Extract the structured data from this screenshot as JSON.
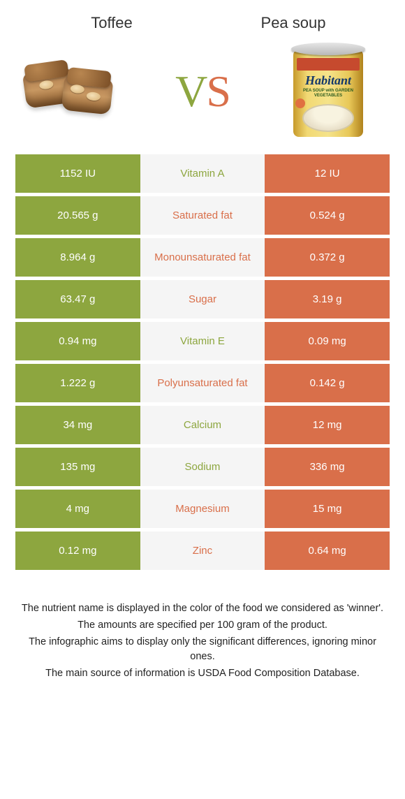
{
  "colors": {
    "left": "#8da63f",
    "right": "#d96f4a",
    "mid_bg": "#f5f5f5"
  },
  "header": {
    "left_title": "Toffee",
    "right_title": "Pea soup",
    "vs_v": "V",
    "vs_s": "S"
  },
  "can": {
    "brand": "Habitant",
    "sub": "PEA SOUP with GARDEN VEGETABLES"
  },
  "rows": [
    {
      "left": "1152 IU",
      "mid": "Vitamin A",
      "right": "12 IU",
      "winner": "left"
    },
    {
      "left": "20.565 g",
      "mid": "Saturated fat",
      "right": "0.524 g",
      "winner": "right"
    },
    {
      "left": "8.964 g",
      "mid": "Monounsaturated fat",
      "right": "0.372 g",
      "winner": "right"
    },
    {
      "left": "63.47 g",
      "mid": "Sugar",
      "right": "3.19 g",
      "winner": "right"
    },
    {
      "left": "0.94 mg",
      "mid": "Vitamin E",
      "right": "0.09 mg",
      "winner": "left"
    },
    {
      "left": "1.222 g",
      "mid": "Polyunsaturated fat",
      "right": "0.142 g",
      "winner": "right"
    },
    {
      "left": "34 mg",
      "mid": "Calcium",
      "right": "12 mg",
      "winner": "left"
    },
    {
      "left": "135 mg",
      "mid": "Sodium",
      "right": "336 mg",
      "winner": "left"
    },
    {
      "left": "4 mg",
      "mid": "Magnesium",
      "right": "15 mg",
      "winner": "right"
    },
    {
      "left": "0.12 mg",
      "mid": "Zinc",
      "right": "0.64 mg",
      "winner": "right"
    }
  ],
  "footer": {
    "l1": "The nutrient name is displayed in the color of the food we considered as 'winner'.",
    "l2": "The amounts are specified per 100 gram of the product.",
    "l3": "The infographic aims to display only the significant differences, ignoring minor ones.",
    "l4": "The main source of information is USDA Food Composition Database."
  }
}
